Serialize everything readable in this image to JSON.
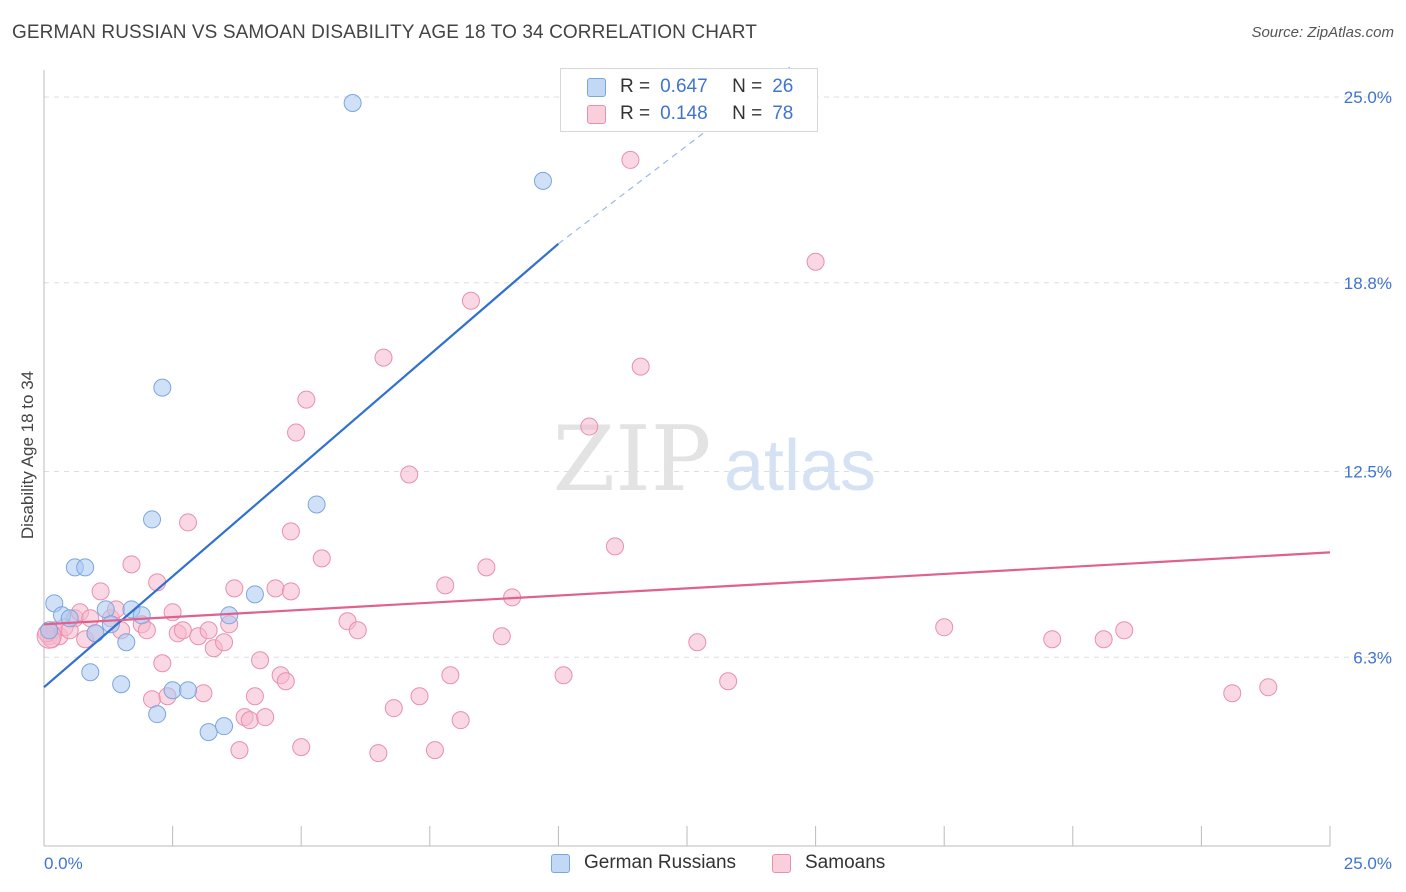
{
  "title": "GERMAN RUSSIAN VS SAMOAN DISABILITY AGE 18 TO 34 CORRELATION CHART",
  "source": "Source: ZipAtlas.com",
  "watermark": {
    "zip": "ZIP",
    "atlas": "atlas"
  },
  "legend": {
    "rows": [
      {
        "r_label": "R =",
        "r_value": "0.647",
        "n_label": "N =",
        "n_value": "26"
      },
      {
        "r_label": "R =",
        "r_value": "0.148",
        "n_label": "N =",
        "n_value": "78"
      }
    ]
  },
  "colors": {
    "blue_fill": "#a9c8f0",
    "blue_stroke": "#7aa6e0",
    "blue_line": "#3070d0",
    "pink_fill": "#f6b8cc",
    "pink_stroke": "#e98fae",
    "pink_line": "#e0608e",
    "tick_text": "#3f74d1"
  },
  "chart_data": {
    "type": "scatter",
    "title": "GERMAN RUSSIAN VS SAMOAN DISABILITY AGE 18 TO 34 CORRELATION CHART",
    "xlabel": "",
    "ylabel": "Disability Age 18 to 34",
    "xlim": [
      0,
      25
    ],
    "ylim": [
      0,
      26
    ],
    "x_tick_labels": [
      "0.0%",
      "25.0%"
    ],
    "y_ticks": [
      6.3,
      12.5,
      18.8,
      25.0
    ],
    "y_tick_labels": [
      "6.3%",
      "12.5%",
      "18.8%",
      "25.0%"
    ],
    "grid": "horizontal dashed",
    "legend_position": "top-center",
    "series": [
      {
        "name": "German Russians",
        "color": "#a9c8f0",
        "r": 0.647,
        "n": 26,
        "trend": {
          "x": [
            0,
            10
          ],
          "y": [
            5.3,
            20.1
          ],
          "dashed_extension": {
            "x": [
              10,
              14.5
            ],
            "y": [
              20.1,
              26.0
            ]
          }
        },
        "points": [
          {
            "x": 0.1,
            "y": 7.2
          },
          {
            "x": 0.2,
            "y": 8.1
          },
          {
            "x": 0.35,
            "y": 7.7
          },
          {
            "x": 0.5,
            "y": 7.6
          },
          {
            "x": 0.6,
            "y": 9.3
          },
          {
            "x": 0.8,
            "y": 9.3
          },
          {
            "x": 0.9,
            "y": 5.8
          },
          {
            "x": 1.0,
            "y": 7.1
          },
          {
            "x": 1.2,
            "y": 7.9
          },
          {
            "x": 1.3,
            "y": 7.4
          },
          {
            "x": 1.5,
            "y": 5.4
          },
          {
            "x": 1.6,
            "y": 6.8
          },
          {
            "x": 1.7,
            "y": 7.9
          },
          {
            "x": 1.9,
            "y": 7.7
          },
          {
            "x": 2.1,
            "y": 10.9
          },
          {
            "x": 2.2,
            "y": 4.4
          },
          {
            "x": 2.3,
            "y": 15.3
          },
          {
            "x": 2.5,
            "y": 5.2
          },
          {
            "x": 2.8,
            "y": 5.2
          },
          {
            "x": 3.2,
            "y": 3.8
          },
          {
            "x": 3.5,
            "y": 4.0
          },
          {
            "x": 3.6,
            "y": 7.7
          },
          {
            "x": 4.1,
            "y": 8.4
          },
          {
            "x": 5.3,
            "y": 11.4
          },
          {
            "x": 6.0,
            "y": 24.8
          },
          {
            "x": 9.7,
            "y": 22.2
          }
        ]
      },
      {
        "name": "Samoans",
        "color": "#f6b8cc",
        "r": 0.148,
        "n": 78,
        "trend": {
          "x": [
            0,
            25
          ],
          "y": [
            7.4,
            9.8
          ]
        },
        "points": [
          {
            "x": 0.1,
            "y": 7.0
          },
          {
            "x": 0.2,
            "y": 7.2
          },
          {
            "x": 0.3,
            "y": 7.0
          },
          {
            "x": 0.4,
            "y": 7.3
          },
          {
            "x": 0.5,
            "y": 7.2
          },
          {
            "x": 0.6,
            "y": 7.6
          },
          {
            "x": 0.7,
            "y": 7.8
          },
          {
            "x": 0.8,
            "y": 6.9
          },
          {
            "x": 0.9,
            "y": 7.6
          },
          {
            "x": 1.0,
            "y": 7.1
          },
          {
            "x": 1.1,
            "y": 8.5
          },
          {
            "x": 1.3,
            "y": 7.6
          },
          {
            "x": 1.4,
            "y": 7.9
          },
          {
            "x": 1.5,
            "y": 7.2
          },
          {
            "x": 1.7,
            "y": 9.4
          },
          {
            "x": 1.9,
            "y": 7.4
          },
          {
            "x": 2.0,
            "y": 7.2
          },
          {
            "x": 2.1,
            "y": 4.9
          },
          {
            "x": 2.2,
            "y": 8.8
          },
          {
            "x": 2.3,
            "y": 6.1
          },
          {
            "x": 2.4,
            "y": 5.0
          },
          {
            "x": 2.5,
            "y": 7.8
          },
          {
            "x": 2.6,
            "y": 7.1
          },
          {
            "x": 2.7,
            "y": 7.2
          },
          {
            "x": 2.8,
            "y": 10.8
          },
          {
            "x": 3.0,
            "y": 7.0
          },
          {
            "x": 3.1,
            "y": 5.1
          },
          {
            "x": 3.2,
            "y": 7.2
          },
          {
            "x": 3.3,
            "y": 6.6
          },
          {
            "x": 3.5,
            "y": 6.8
          },
          {
            "x": 3.6,
            "y": 7.4
          },
          {
            "x": 3.7,
            "y": 8.6
          },
          {
            "x": 3.8,
            "y": 3.2
          },
          {
            "x": 3.9,
            "y": 4.3
          },
          {
            "x": 4.0,
            "y": 4.2
          },
          {
            "x": 4.1,
            "y": 5.0
          },
          {
            "x": 4.2,
            "y": 6.2
          },
          {
            "x": 4.3,
            "y": 4.3
          },
          {
            "x": 4.5,
            "y": 8.6
          },
          {
            "x": 4.6,
            "y": 5.7
          },
          {
            "x": 4.7,
            "y": 5.5
          },
          {
            "x": 4.8,
            "y": 8.5
          },
          {
            "x": 4.8,
            "y": 10.5
          },
          {
            "x": 4.9,
            "y": 13.8
          },
          {
            "x": 5.0,
            "y": 3.3
          },
          {
            "x": 5.1,
            "y": 14.9
          },
          {
            "x": 5.4,
            "y": 9.6
          },
          {
            "x": 5.9,
            "y": 7.5
          },
          {
            "x": 6.1,
            "y": 7.2
          },
          {
            "x": 6.5,
            "y": 3.1
          },
          {
            "x": 6.6,
            "y": 16.3
          },
          {
            "x": 6.8,
            "y": 4.6
          },
          {
            "x": 7.1,
            "y": 12.4
          },
          {
            "x": 7.3,
            "y": 5.0
          },
          {
            "x": 7.6,
            "y": 3.2
          },
          {
            "x": 7.8,
            "y": 8.7
          },
          {
            "x": 7.9,
            "y": 5.7
          },
          {
            "x": 8.1,
            "y": 4.2
          },
          {
            "x": 8.3,
            "y": 18.2
          },
          {
            "x": 8.6,
            "y": 9.3
          },
          {
            "x": 8.9,
            "y": 7.0
          },
          {
            "x": 9.1,
            "y": 8.3
          },
          {
            "x": 10.1,
            "y": 5.7
          },
          {
            "x": 10.6,
            "y": 14.0
          },
          {
            "x": 11.1,
            "y": 10.0
          },
          {
            "x": 11.4,
            "y": 22.9
          },
          {
            "x": 11.6,
            "y": 16.0
          },
          {
            "x": 12.7,
            "y": 6.8
          },
          {
            "x": 13.3,
            "y": 5.5
          },
          {
            "x": 15.0,
            "y": 19.5
          },
          {
            "x": 17.5,
            "y": 7.3
          },
          {
            "x": 19.6,
            "y": 6.9
          },
          {
            "x": 20.6,
            "y": 6.9
          },
          {
            "x": 21.0,
            "y": 7.2
          },
          {
            "x": 23.1,
            "y": 5.1
          },
          {
            "x": 23.8,
            "y": 5.3
          },
          {
            "x": 0.15,
            "y": 6.9
          },
          {
            "x": 0.05,
            "y": 7.1
          }
        ]
      }
    ]
  }
}
